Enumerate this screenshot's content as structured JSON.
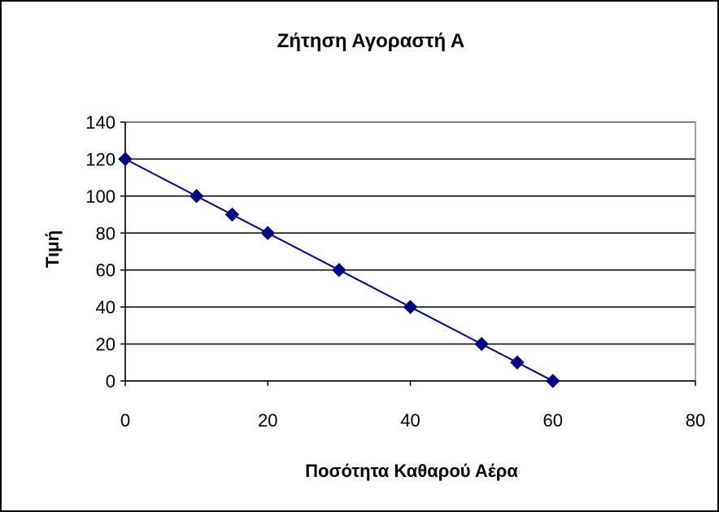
{
  "chart_data": {
    "type": "scatter",
    "title": "Ζήτηση Αγοραστή Α",
    "xlabel": "Ποσότητα Καθαρού Αέρα",
    "ylabel": "Τιμή",
    "xlim": [
      0,
      80
    ],
    "ylim": [
      0,
      140
    ],
    "x_ticks": [
      0,
      20,
      40,
      60,
      80
    ],
    "y_ticks": [
      0,
      20,
      40,
      60,
      80,
      100,
      120,
      140
    ],
    "grid": "horizontal",
    "legend": "none",
    "connected": true,
    "marker": "diamond",
    "colors": {
      "series": "#000080",
      "grid": "#000000",
      "frame": "#000000",
      "plot_border": "#808080"
    },
    "series": [
      {
        "x": [
          0,
          10,
          15,
          20,
          30,
          40,
          50,
          55,
          60
        ],
        "y": [
          120,
          100,
          90,
          80,
          60,
          40,
          20,
          10,
          0
        ]
      }
    ]
  }
}
